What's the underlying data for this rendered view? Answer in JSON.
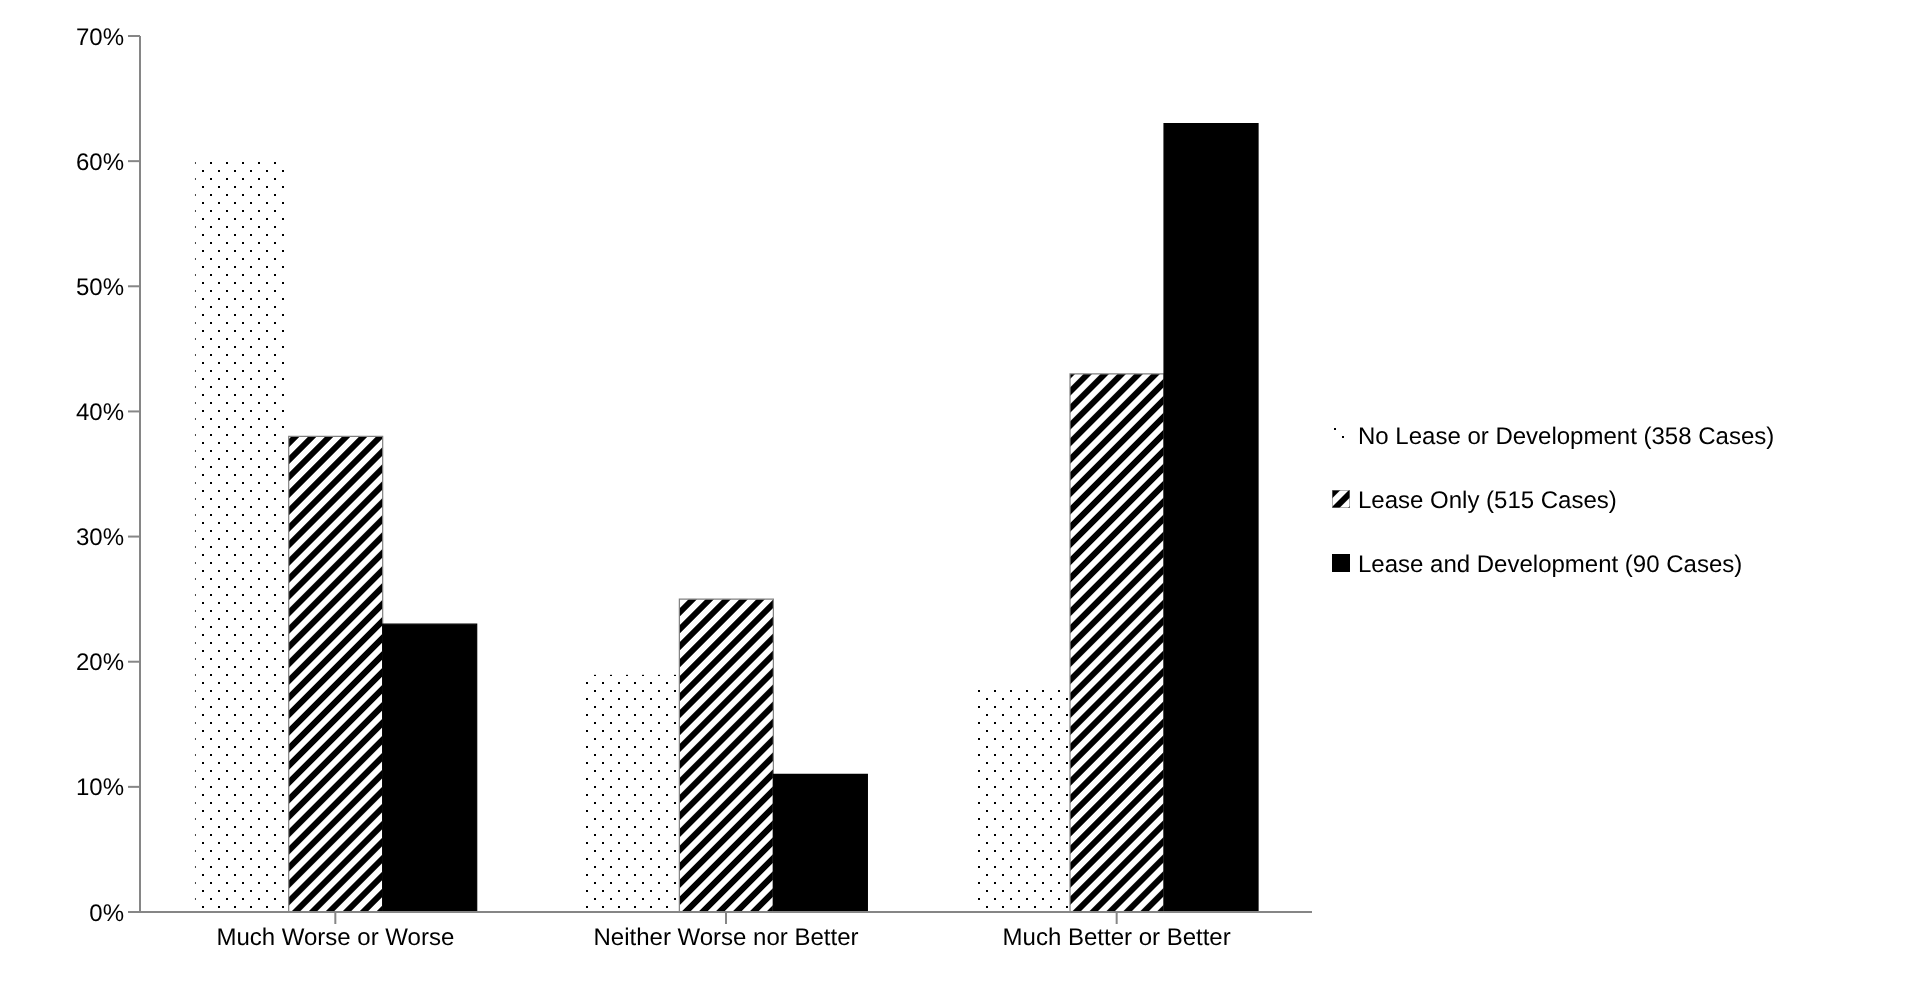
{
  "chart_data": {
    "type": "bar",
    "categories": [
      "Much Worse or Worse",
      "Neither Worse nor Better",
      "Much Better or Better"
    ],
    "series": [
      {
        "name": "No Lease or Development (358 Cases)",
        "color": "#ffffff",
        "values": [
          60,
          19,
          18
        ]
      },
      {
        "name": "Lease Only (515 Cases)",
        "color": "#808080",
        "values": [
          38,
          25,
          43
        ]
      },
      {
        "name": "Lease and Development (90 Cases)",
        "color": "#000000",
        "values": [
          23,
          11,
          63
        ]
      }
    ],
    "ylim": [
      0,
      70
    ],
    "yticks": [
      {
        "value": 0,
        "label": "0%"
      },
      {
        "value": 10,
        "label": "10%"
      },
      {
        "value": 20,
        "label": "20%"
      },
      {
        "value": 30,
        "label": "30%"
      },
      {
        "value": 40,
        "label": "40%"
      },
      {
        "value": 50,
        "label": "50%"
      },
      {
        "value": 60,
        "label": "60%"
      },
      {
        "value": 70,
        "label": "70%"
      }
    ],
    "grid": false,
    "legend": "right"
  }
}
